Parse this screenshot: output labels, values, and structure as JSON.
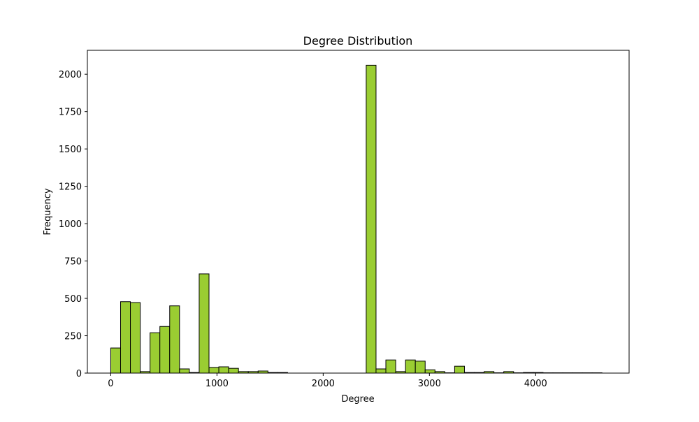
{
  "chart_data": {
    "type": "bar",
    "title": "Degree Distribution",
    "xlabel": "Degree",
    "ylabel": "Frequency",
    "xlim": [
      -220,
      4880
    ],
    "ylim": [
      0,
      2160
    ],
    "x_ticks": [
      0,
      1000,
      2000,
      3000,
      4000
    ],
    "y_ticks": [
      0,
      250,
      500,
      750,
      1000,
      1250,
      1500,
      1750,
      2000
    ],
    "grid": false,
    "legend": "none",
    "bar_color": "#9acd32",
    "edge_color": "#000000",
    "bin_width": 92.5,
    "bin_starts": [
      0,
      92.5,
      185,
      277.5,
      370,
      462.5,
      555,
      647.5,
      740,
      832.5,
      925,
      1017.5,
      1110,
      1202.5,
      1295,
      1387.5,
      1480,
      1572.5,
      1665,
      1757.5,
      1850,
      1942.5,
      2035,
      2127.5,
      2220,
      2312.5,
      2405,
      2497.5,
      2590,
      2682.5,
      2775,
      2867.5,
      2960,
      3052.5,
      3145,
      3237.5,
      3330,
      3422.5,
      3515,
      3607.5,
      3700,
      3792.5,
      3885,
      3977.5,
      4070,
      4162.5,
      4255,
      4347.5,
      4440,
      4532.5
    ],
    "values": [
      168,
      478,
      472,
      10,
      270,
      312,
      450,
      28,
      4,
      664,
      38,
      42,
      32,
      10,
      10,
      14,
      4,
      4,
      0,
      0,
      0,
      0,
      0,
      0,
      0,
      0,
      2060,
      28,
      88,
      10,
      88,
      80,
      22,
      10,
      2,
      46,
      4,
      4,
      10,
      2,
      10,
      2,
      4,
      4,
      2,
      2,
      2,
      2,
      2,
      2
    ]
  }
}
